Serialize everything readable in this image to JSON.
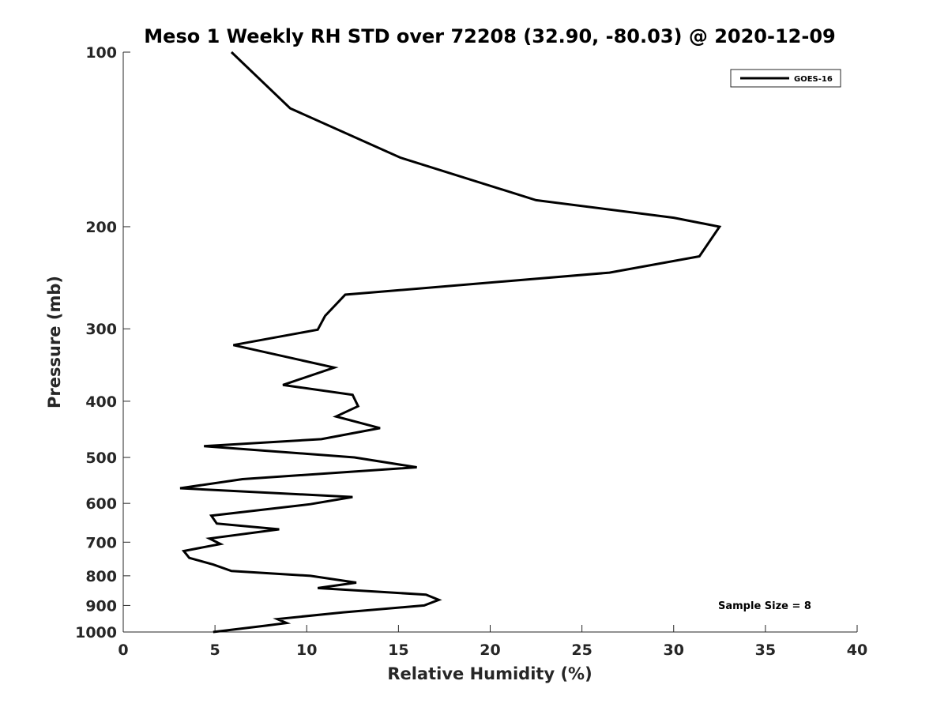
{
  "chart_data": {
    "type": "line",
    "title": "Meso 1 Weekly RH STD over 72208 (32.90, -80.03) @ 2020-12-09",
    "xlabel": "Relative Humidity (%)",
    "ylabel": "Pressure (mb)",
    "xlim": [
      0,
      40
    ],
    "ylim": [
      100,
      1000
    ],
    "y_scale": "log",
    "y_reversed": true,
    "x_ticks": [
      0,
      5,
      10,
      15,
      20,
      25,
      30,
      35,
      40
    ],
    "y_ticks": [
      100,
      200,
      300,
      400,
      500,
      600,
      700,
      800,
      900,
      1000
    ],
    "grid": false,
    "legend_position": "top-right",
    "series": [
      {
        "name": "GOES-16",
        "color": "#000000",
        "points": [
          [
            5.9,
            100
          ],
          [
            9.1,
            125
          ],
          [
            15.1,
            152
          ],
          [
            22.5,
            180
          ],
          [
            30.0,
            193
          ],
          [
            32.5,
            200
          ],
          [
            31.4,
            225
          ],
          [
            26.5,
            240
          ],
          [
            12.1,
            262
          ],
          [
            11.0,
            285
          ],
          [
            10.6,
            301
          ],
          [
            6.0,
            320
          ],
          [
            11.5,
            350
          ],
          [
            8.7,
            375
          ],
          [
            12.5,
            390
          ],
          [
            12.8,
            408
          ],
          [
            11.6,
            425
          ],
          [
            14.0,
            445
          ],
          [
            10.8,
            465
          ],
          [
            4.4,
            478
          ],
          [
            12.6,
            500
          ],
          [
            16.0,
            520
          ],
          [
            6.5,
            545
          ],
          [
            3.1,
            565
          ],
          [
            12.5,
            585
          ],
          [
            10.2,
            602
          ],
          [
            4.8,
            630
          ],
          [
            5.1,
            650
          ],
          [
            8.5,
            665
          ],
          [
            4.7,
            690
          ],
          [
            5.3,
            705
          ],
          [
            3.3,
            725
          ],
          [
            3.6,
            745
          ],
          [
            4.9,
            765
          ],
          [
            5.9,
            785
          ],
          [
            10.2,
            800
          ],
          [
            12.7,
            822
          ],
          [
            10.6,
            840
          ],
          [
            16.5,
            862
          ],
          [
            17.2,
            880
          ],
          [
            16.4,
            900
          ],
          [
            12.0,
            925
          ],
          [
            8.4,
            950
          ],
          [
            8.9,
            965
          ],
          [
            7.8,
            975
          ],
          [
            4.9,
            1000
          ]
        ]
      }
    ],
    "annotation": "Sample Size = 8"
  }
}
